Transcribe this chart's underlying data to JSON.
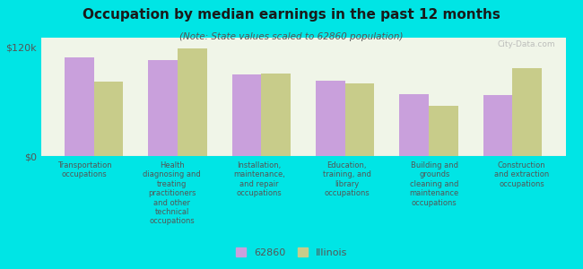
{
  "title": "Occupation by median earnings in the past 12 months",
  "subtitle": "(Note: State values scaled to 62860 population)",
  "background_color": "#00e5e5",
  "plot_bg_color": "#f0f5e8",
  "categories": [
    "Transportation\noccupations",
    "Health\ndiagnosing and\ntreating\npractitioners\nand other\ntechnical\noccupations",
    "Installation,\nmaintenance,\nand repair\noccupations",
    "Education,\ntraining, and\nlibrary\noccupations",
    "Building and\ngrounds\ncleaning and\nmaintenance\noccupations",
    "Construction\nand extraction\noccupations"
  ],
  "values_62860": [
    108000,
    105000,
    90000,
    83000,
    68000,
    67000
  ],
  "values_illinois": [
    82000,
    118000,
    91000,
    80000,
    55000,
    97000
  ],
  "color_62860": "#c9a0dc",
  "color_illinois": "#c8cc8a",
  "ylim": [
    0,
    130000
  ],
  "yticks": [
    0,
    120000
  ],
  "ytick_labels": [
    "$0",
    "$120k"
  ],
  "legend_labels": [
    "62860",
    "Illinois"
  ],
  "watermark": "City-Data.com",
  "bar_width": 0.35
}
